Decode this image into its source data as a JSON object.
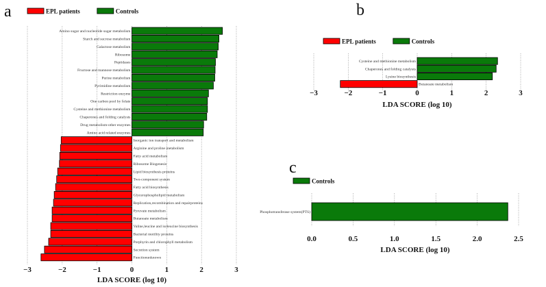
{
  "colors": {
    "patients": "#ff0000",
    "controls": "#0a7a0a"
  },
  "chart_data": [
    {
      "panel": "a",
      "type": "bar",
      "orientation": "horizontal",
      "xlabel": "LDA SCORE (log 10)",
      "xlim": [
        -3,
        3
      ],
      "xticks": [
        "−3",
        "−2",
        "−1",
        "0",
        "1",
        "2",
        "3"
      ],
      "grid": "vertical dotted",
      "legend": [
        {
          "name": "EPL patients",
          "color": "#ff0000"
        },
        {
          "name": "Controls",
          "color": "#0a7a0a"
        }
      ],
      "legend_position": "top-left",
      "categories": [
        "Amino sugar and nucleotide sugar metabolism",
        "Starch and sucrose metabolism",
        "Galactose metabolism",
        "Ribosome",
        "Peptidases",
        "Fructose and mannose metabolism",
        "Purine metabolism",
        "Pyrimidine metabolism",
        "Restriction enzyme",
        "One carbon pool by folate",
        "Cysteine and methionine metabolism",
        "Chaperones and folding catalysts",
        "Drug metabolism-other enzymes",
        "Amino acid related enzymes",
        "Inorganic ion transport and metabolism",
        "Arginine and proline metabolism",
        "Fatty acid metabolism",
        "Ribosome Biogenesis",
        "Lipid biosynthesis proteins",
        "Two-component system",
        "Fatty acid biosynthesis",
        "Glycerophospholipid metabolism",
        "Replication,recombination and repairproteins",
        "Pyruvate metabolism",
        "Butanoate metabolism",
        "Valine,leucine and isoleucine biosynthesis",
        "Bacterial motility proteins",
        "Porphyrin and chlorophyll metabolism",
        "Secretion system",
        "Functionunknown"
      ],
      "values": [
        2.6,
        2.5,
        2.48,
        2.45,
        2.4,
        2.39,
        2.38,
        2.34,
        2.2,
        2.17,
        2.17,
        2.15,
        2.06,
        2.05,
        -2.03,
        -2.05,
        -2.07,
        -2.08,
        -2.13,
        -2.16,
        -2.19,
        -2.23,
        -2.25,
        -2.29,
        -2.29,
        -2.33,
        -2.33,
        -2.39,
        -2.51,
        -2.61
      ]
    },
    {
      "panel": "b",
      "type": "bar",
      "orientation": "horizontal",
      "xlabel": "LDA SCORE (log 10)",
      "xlim": [
        -3,
        3
      ],
      "xticks": [
        "−3",
        "−2",
        "−1",
        "0",
        "1",
        "2",
        "3"
      ],
      "grid": "vertical dotted",
      "legend": [
        {
          "name": "EPL patients",
          "color": "#ff0000"
        },
        {
          "name": "Controls",
          "color": "#0a7a0a"
        }
      ],
      "legend_position": "top",
      "categories": [
        "Cysteine and methionine metabolism",
        "Chaperones and folding catalysts",
        "Lysine biosynthesis",
        "Butanoate metabolism"
      ],
      "values": [
        2.33,
        2.29,
        2.18,
        -2.23
      ]
    },
    {
      "panel": "c",
      "type": "bar",
      "orientation": "horizontal",
      "xlabel": "LDA SCORE (log 10)",
      "xlim": [
        0,
        2.5
      ],
      "xticks": [
        "0.0",
        "0.5",
        "1.0",
        "1.5",
        "2.0",
        "2.5"
      ],
      "grid": "vertical dotted",
      "legend": [
        {
          "name": "Controls",
          "color": "#0a7a0a"
        }
      ],
      "legend_position": "top-left",
      "categories": [
        "Phosphotransferase system(PTS)"
      ],
      "values": [
        2.37
      ]
    }
  ]
}
